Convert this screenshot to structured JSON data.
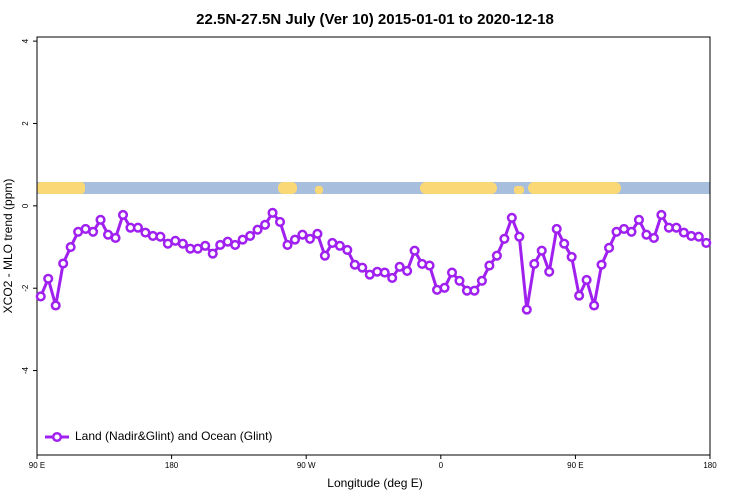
{
  "chart_data": {
    "type": "line",
    "title": "22.5N-27.5N July (Ver 10)   2015-01-01 to 2020-12-18",
    "xlabel": "Longitude (deg E)",
    "ylabel": "XCO2 - MLO trend (ppm)",
    "xlim": [
      90,
      540
    ],
    "xticks": [
      {
        "value": 90,
        "label": "90 E"
      },
      180,
      {
        "value": 270,
        "label": "90 W"
      },
      {
        "value": 360,
        "label": "0"
      },
      {
        "value": 450,
        "label": "90 E"
      },
      {
        "value": 540,
        "label": "180"
      }
    ],
    "ylim": [
      -6.05,
      4.1
    ],
    "yticks": [
      -4,
      -2,
      0,
      2,
      4
    ],
    "legend": "bottom-left",
    "x": [
      92.5,
      97.5,
      102.5,
      107.5,
      112.5,
      117.5,
      122.5,
      127.5,
      132.5,
      137.5,
      142.5,
      147.5,
      152.5,
      157.5,
      162.5,
      167.5,
      172.5,
      177.5,
      182.5,
      187.5,
      192.5,
      197.5,
      202.5,
      207.5,
      212.5,
      217.5,
      222.5,
      227.5,
      232.5,
      237.5,
      242.5,
      247.5,
      252.5,
      257.5,
      262.5,
      267.5,
      272.5,
      277.5,
      282.5,
      287.5,
      292.5,
      297.5,
      302.5,
      307.5,
      312.5,
      317.5,
      322.5,
      327.5,
      332.5,
      337.5,
      342.5,
      347.5,
      352.5,
      357.5,
      362.5,
      367.5,
      372.5,
      377.5,
      382.5,
      387.5,
      392.5,
      397.5,
      402.5,
      407.5,
      412.5,
      417.5,
      422.5,
      427.5,
      432.5,
      437.5,
      442.5,
      447.5,
      452.5,
      457.5,
      462.5,
      467.5,
      472.5,
      477.5,
      482.5,
      487.5,
      492.5,
      497.5,
      502.5,
      507.5,
      512.5,
      517.5,
      522.5,
      527.5,
      532.5,
      537.5
    ],
    "series": [
      {
        "name": "Land (Nadir&Glint) and Ocean (Glint)",
        "color": "#a020f0",
        "values": [
          -2.2,
          -1.77,
          -2.42,
          -1.4,
          -1.0,
          -0.63,
          -0.56,
          -0.63,
          -0.34,
          -0.7,
          -0.78,
          -0.22,
          -0.53,
          -0.53,
          -0.65,
          -0.73,
          -0.75,
          -0.92,
          -0.85,
          -0.92,
          -1.04,
          -1.04,
          -0.97,
          -1.16,
          -0.95,
          -0.87,
          -0.95,
          -0.82,
          -0.73,
          -0.58,
          -0.46,
          -0.17,
          -0.39,
          -0.95,
          -0.82,
          -0.7,
          -0.8,
          -0.68,
          -1.21,
          -0.9,
          -0.97,
          -1.07,
          -1.43,
          -1.5,
          -1.67,
          -1.6,
          -1.62,
          -1.75,
          -1.48,
          -1.58,
          -1.09,
          -1.41,
          -1.45,
          -2.04,
          -1.99,
          -1.62,
          -1.82,
          -2.06,
          -2.06,
          -1.82,
          -1.45,
          -1.21,
          -0.8,
          -0.29,
          -0.75,
          -2.52,
          -1.41,
          -1.09,
          -1.6,
          -0.56,
          -0.92,
          -1.24,
          -2.18,
          -1.8,
          -2.42,
          -1.43,
          -1.02,
          -0.63,
          -0.56,
          -0.63,
          -0.34,
          -0.7,
          -0.78,
          -0.22,
          -0.53,
          -0.53,
          -0.65,
          -0.73,
          -0.75,
          -0.9
        ]
      }
    ]
  }
}
